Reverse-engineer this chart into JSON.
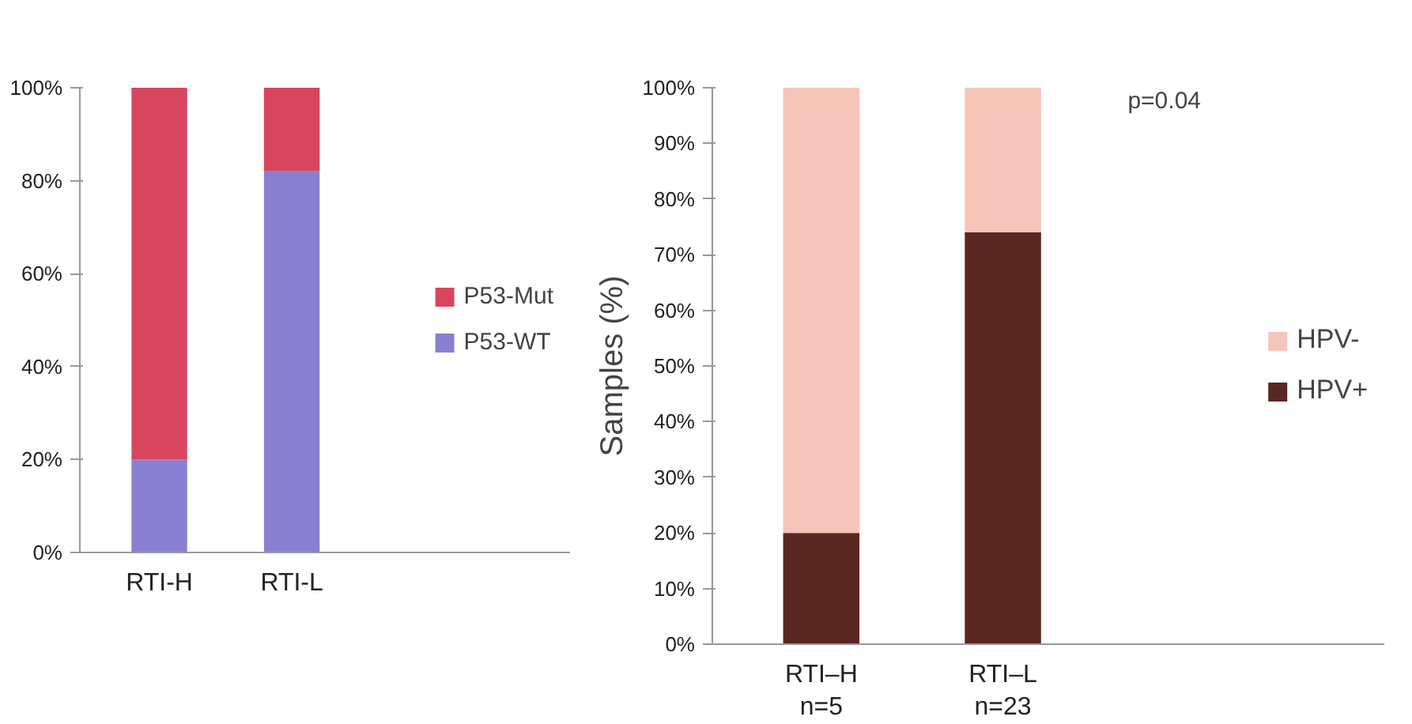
{
  "chart_data": [
    {
      "type": "bar",
      "stacked": true,
      "categories": [
        "RTI-H",
        "RTI-L"
      ],
      "series": [
        {
          "name": "P53-WT",
          "color": "#8a80d2",
          "values": [
            20,
            82
          ]
        },
        {
          "name": "P53-Mut",
          "color": "#d8455f",
          "values": [
            80,
            18
          ]
        }
      ],
      "ylim": [
        0,
        100
      ],
      "yticks": [
        {
          "value": 0,
          "label": "0%"
        },
        {
          "value": 20,
          "label": "20%"
        },
        {
          "value": 40,
          "label": "40%"
        },
        {
          "value": 60,
          "label": "60%"
        },
        {
          "value": 80,
          "label": "80%"
        },
        {
          "value": 100,
          "label": "100%"
        }
      ],
      "legend": "right",
      "grid": false
    },
    {
      "type": "bar",
      "stacked": true,
      "categories": [
        "RTI–H\nn=5",
        "RTI–L\nn=23"
      ],
      "ylabel": "Samples (%)",
      "series": [
        {
          "name": "HPV+",
          "color": "#5a2621",
          "values": [
            20,
            74
          ]
        },
        {
          "name": "HPV-",
          "color": "#f6c5ba",
          "values": [
            80,
            26
          ]
        }
      ],
      "ylim": [
        0,
        100
      ],
      "yticks": [
        {
          "value": 0,
          "label": "0%"
        },
        {
          "value": 10,
          "label": "10%"
        },
        {
          "value": 20,
          "label": "20%"
        },
        {
          "value": 30,
          "label": "30%"
        },
        {
          "value": 40,
          "label": "40%"
        },
        {
          "value": 50,
          "label": "50%"
        },
        {
          "value": 60,
          "label": "60%"
        },
        {
          "value": 70,
          "label": "70%"
        },
        {
          "value": 80,
          "label": "80%"
        },
        {
          "value": 90,
          "label": "90%"
        },
        {
          "value": 100,
          "label": "100%"
        }
      ],
      "annotations": [
        "p=0.04"
      ],
      "legend": "right",
      "grid": false
    }
  ]
}
